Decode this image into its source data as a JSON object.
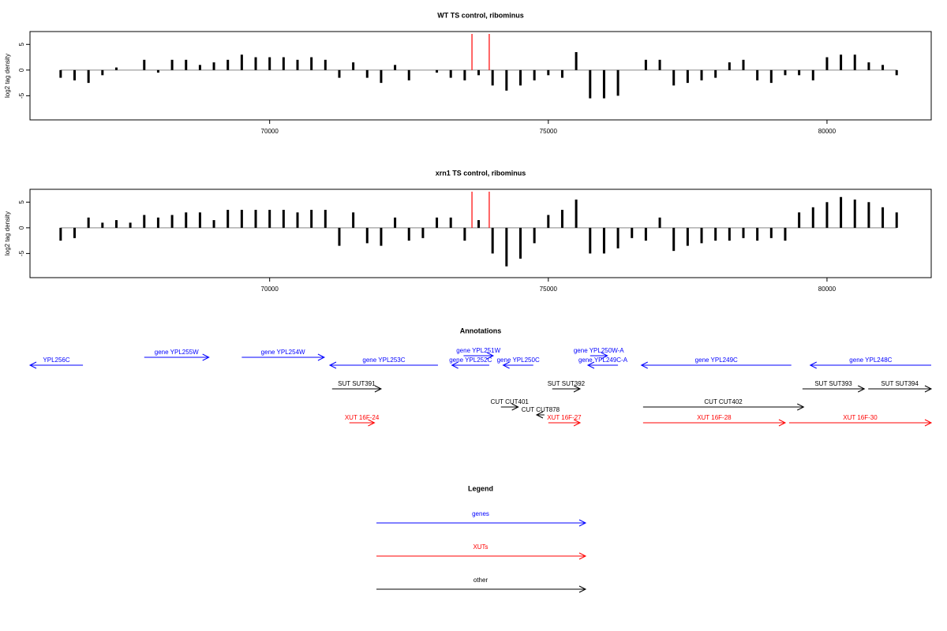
{
  "chart_data": [
    {
      "type": "bar",
      "title": "WT TS control, ribominus",
      "ylabel": "log2 tag density",
      "color": "#000000",
      "xlim": [
        65700,
        81870
      ],
      "xticks": [
        70000,
        75000,
        80000
      ],
      "ylim": [
        -9.7,
        7.5
      ],
      "yticks": [
        -5,
        0,
        5
      ],
      "markers": [
        73630,
        73940
      ],
      "marker_color": "#ff0000",
      "x": [
        66250,
        66500,
        66750,
        67000,
        67250,
        67500,
        67750,
        68000,
        68250,
        68500,
        68750,
        69000,
        69250,
        69500,
        69750,
        70000,
        70250,
        70500,
        70750,
        71000,
        71250,
        71500,
        71750,
        72000,
        72250,
        72500,
        72750,
        73000,
        73250,
        73500,
        73750,
        74000,
        74250,
        74500,
        74750,
        75000,
        75250,
        75500,
        75750,
        76000,
        76250,
        76500,
        76750,
        77000,
        77250,
        77500,
        77750,
        78000,
        78250,
        78500,
        78750,
        79000,
        79250,
        79500,
        79750,
        80000,
        80250,
        80500,
        80750,
        81000,
        81250
      ],
      "values": [
        -1.5,
        -2,
        -2.5,
        -1,
        0.5,
        0,
        2,
        -0.5,
        2,
        2,
        1,
        1.5,
        2,
        3,
        2.5,
        2.5,
        2.5,
        2,
        2.5,
        2,
        -1.5,
        1.5,
        -1.5,
        -2.5,
        1,
        -2,
        0,
        -0.5,
        -1.5,
        -2,
        -1,
        -3,
        -4,
        -3,
        -2,
        -1,
        -1.5,
        3.5,
        -5.5,
        -5.5,
        -5,
        0,
        2,
        2,
        -3,
        -2.5,
        -2,
        -1.5,
        1.5,
        2,
        -2,
        -2.5,
        -1,
        -1,
        -2,
        2.5,
        3,
        3,
        1.5,
        1,
        -1
      ]
    },
    {
      "type": "bar",
      "title": "xrn1 TS control, ribominus",
      "ylabel": "log2 tag density",
      "color": "#000000",
      "xlim": [
        65700,
        81870
      ],
      "xticks": [
        70000,
        75000,
        80000
      ],
      "ylim": [
        -9.7,
        7.5
      ],
      "yticks": [
        -5,
        0,
        5
      ],
      "markers": [
        73630,
        73940
      ],
      "marker_color": "#ff0000",
      "x": [
        66250,
        66500,
        66750,
        67000,
        67250,
        67500,
        67750,
        68000,
        68250,
        68500,
        68750,
        69000,
        69250,
        69500,
        69750,
        70000,
        70250,
        70500,
        70750,
        71000,
        71250,
        71500,
        71750,
        72000,
        72250,
        72500,
        72750,
        73000,
        73250,
        73500,
        73750,
        74000,
        74250,
        74500,
        74750,
        75000,
        75250,
        75500,
        75750,
        76000,
        76250,
        76500,
        76750,
        77000,
        77250,
        77500,
        77750,
        78000,
        78250,
        78500,
        78750,
        79000,
        79250,
        79500,
        79750,
        80000,
        80250,
        80500,
        80750,
        81000,
        81250
      ],
      "values": [
        -2.5,
        -2,
        2,
        1,
        1.5,
        1,
        2.5,
        2,
        2.5,
        3,
        3,
        1.5,
        3.5,
        3.5,
        3.5,
        3.5,
        3.5,
        3,
        3.5,
        3.5,
        -3.5,
        3,
        -3,
        -3.5,
        2,
        -2.5,
        -2,
        2,
        2,
        -2.5,
        1.5,
        -5,
        -7.5,
        -6,
        -3,
        2.5,
        3.5,
        5.5,
        -5,
        -5,
        -4,
        -2,
        -2.5,
        2,
        -4.5,
        -3.5,
        -3,
        -2.5,
        -2.5,
        -2,
        -2.5,
        -2,
        -2.5,
        3,
        4,
        5,
        6,
        5.5,
        5,
        4,
        3
      ]
    }
  ],
  "annotations": {
    "title": "Annotations",
    "features": [
      {
        "label": "YPL256C",
        "start": 65700,
        "end": 66650,
        "strand": "-",
        "color": "#0000ff"
      },
      {
        "label": "gene YPL255W",
        "start": 67750,
        "end": 68910,
        "strand": "+",
        "color": "#0000ff"
      },
      {
        "label": "gene YPL254W",
        "start": 69500,
        "end": 70980,
        "strand": "+",
        "color": "#0000ff"
      },
      {
        "label": "gene YPL253C",
        "start": 71080,
        "end": 73020,
        "strand": "-",
        "color": "#0000ff"
      },
      {
        "label": "gene YPL252C",
        "start": 73270,
        "end": 73940,
        "strand": "-",
        "color": "#0000ff"
      },
      {
        "label": "gene YPL251W",
        "start": 73480,
        "end": 74010,
        "strand": "+",
        "color": "#0000ff"
      },
      {
        "label": "gene YPL250C",
        "start": 74190,
        "end": 74730,
        "strand": "-",
        "color": "#0000ff"
      },
      {
        "label": "gene YPL250W-A",
        "start": 75750,
        "end": 76060,
        "strand": "+",
        "color": "#0000ff"
      },
      {
        "label": "gene YPL249C-A",
        "start": 75710,
        "end": 76250,
        "strand": "-",
        "color": "#0000ff"
      },
      {
        "label": "gene YPL249C",
        "start": 76670,
        "end": 79360,
        "strand": "-",
        "color": "#0000ff"
      },
      {
        "label": "gene YPL248C",
        "start": 79700,
        "end": 81870,
        "strand": "-",
        "color": "#0000ff"
      },
      {
        "label": "SUT SUT391",
        "start": 71120,
        "end": 72000,
        "strand": "+",
        "color": "#000000"
      },
      {
        "label": "SUT SUT392",
        "start": 75070,
        "end": 75570,
        "strand": "+",
        "color": "#000000"
      },
      {
        "label": "SUT SUT393",
        "start": 79560,
        "end": 80670,
        "strand": "+",
        "color": "#000000"
      },
      {
        "label": "SUT SUT394",
        "start": 80740,
        "end": 81870,
        "strand": "+",
        "color": "#000000"
      },
      {
        "label": "CUT CUT401",
        "start": 74150,
        "end": 74460,
        "strand": "+",
        "color": "#000000"
      },
      {
        "label": "CUT CUT878",
        "start": 74790,
        "end": 74930,
        "strand": "-",
        "color": "#000000"
      },
      {
        "label": "CUT CUT402",
        "start": 76700,
        "end": 79580,
        "strand": "+",
        "color": "#000000"
      },
      {
        "label": "XUT 16F-24",
        "start": 71430,
        "end": 71880,
        "strand": "+",
        "color": "#ff0000"
      },
      {
        "label": "XUT 16F-27",
        "start": 75000,
        "end": 75570,
        "strand": "+",
        "color": "#ff0000"
      },
      {
        "label": "XUT 16F-28",
        "start": 76700,
        "end": 79250,
        "strand": "+",
        "color": "#ff0000"
      },
      {
        "label": "XUT 16F-30",
        "start": 79320,
        "end": 81870,
        "strand": "+",
        "color": "#ff0000"
      }
    ]
  },
  "legend": {
    "title": "Legend",
    "items": [
      {
        "label": "genes",
        "color": "#0000ff"
      },
      {
        "label": "XUTs",
        "color": "#ff0000"
      },
      {
        "label": "other",
        "color": "#000000"
      }
    ]
  }
}
